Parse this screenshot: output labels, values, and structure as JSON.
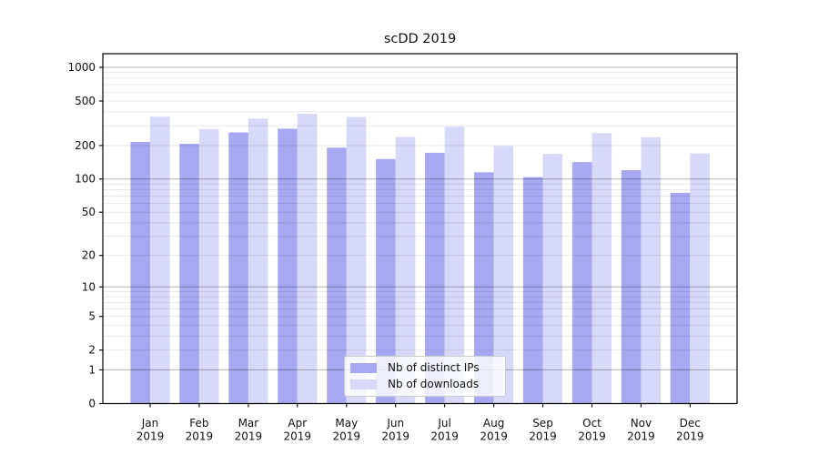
{
  "chart_data": {
    "type": "bar",
    "title": "scDD 2019",
    "categories": [
      "Jan 2019",
      "Feb 2019",
      "Mar 2019",
      "Apr 2019",
      "May 2019",
      "Jun 2019",
      "Jul 2019",
      "Aug 2019",
      "Sep 2019",
      "Oct 2019",
      "Nov 2019",
      "Dec 2019"
    ],
    "series": [
      {
        "name": "Nb of distinct IPs",
        "color": "#a8a8f2",
        "values": [
          215,
          207,
          262,
          283,
          191,
          151,
          172,
          115,
          104,
          142,
          120,
          75
        ]
      },
      {
        "name": "Nb of downloads",
        "color": "#d8d8f8",
        "values": [
          362,
          280,
          348,
          385,
          361,
          239,
          295,
          198,
          168,
          258,
          237,
          170
        ]
      }
    ],
    "xlabel": "",
    "ylabel": "",
    "yscale": "log1p",
    "ytick_labels": [
      0,
      1,
      2,
      5,
      10,
      20,
      50,
      100,
      200,
      500,
      1000
    ],
    "ylim": [
      0,
      1320
    ],
    "grid": "horizontal major+minor",
    "legend_position": "lower-center inside plot"
  },
  "style": {
    "major_grid_color": "rgba(0,0,0,0.30)",
    "minor_grid_color": "rgba(0,0,0,0.09)",
    "spine_color": "#000000",
    "text_color": "#111111"
  }
}
